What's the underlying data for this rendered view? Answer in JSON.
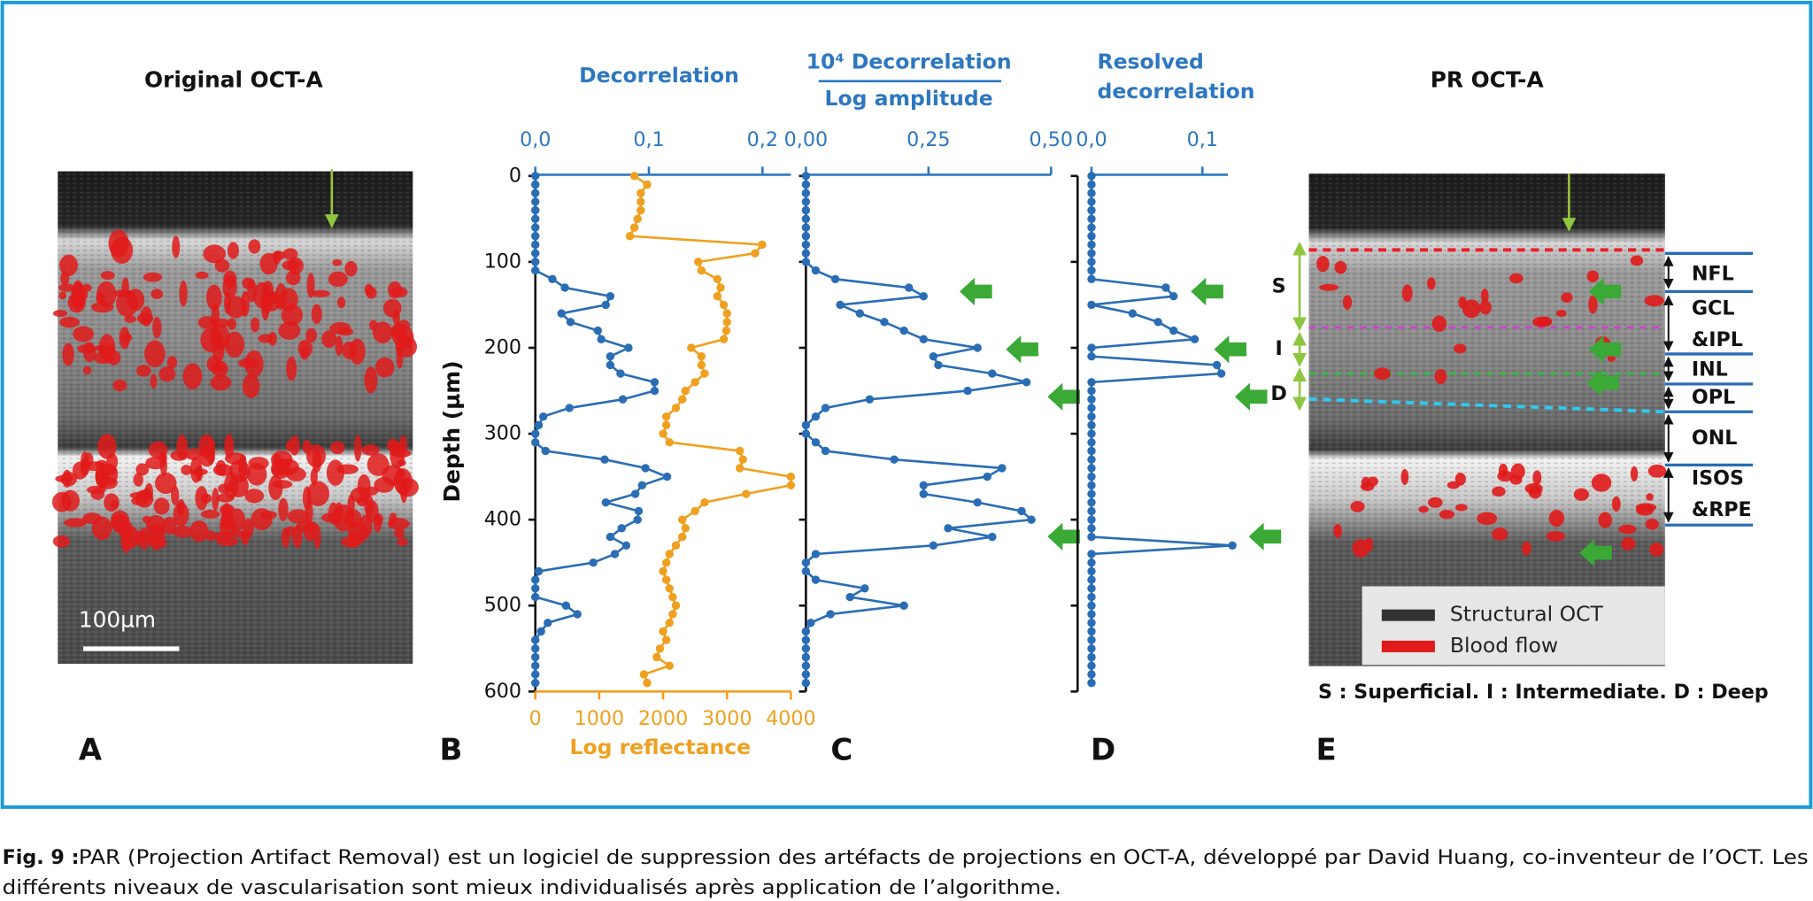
{
  "panels": {
    "a_title": "Original OCT-A",
    "scale_bar": "100µm",
    "e_title": "PR OCT-A",
    "c_title_top": "10⁴ Decorrelation",
    "c_title_bottom": "Log amplitude",
    "d_title_lines": [
      "Resolved",
      "decorrelation"
    ],
    "letters": [
      "A",
      "B",
      "C",
      "D",
      "E"
    ],
    "layers": [
      "NFL",
      "GCL",
      "&IPL",
      "INL",
      "OPL",
      "ONL",
      "ISOS",
      "&RPE"
    ],
    "zones": [
      "S",
      "I",
      "D"
    ],
    "legend": [
      "Structural OCT",
      "Blood flow"
    ],
    "zone_note": "S : Superficial. I : Intermediate. D : Deep"
  },
  "chart_data": [
    {
      "type": "line",
      "xlabel": "Decorrelation",
      "ylabel": "Depth (µm)",
      "xlim": [
        0,
        0.225
      ],
      "xticks": [
        {
          "value": 0,
          "label": "0,0"
        },
        {
          "value": 0.1,
          "label": "0,1"
        },
        {
          "value": 0.2,
          "label": "0,2"
        }
      ],
      "x2label": "Log reflectance",
      "x2lim": [
        0,
        4000
      ],
      "x2ticks": [
        0,
        1000,
        2000,
        3000,
        4000
      ],
      "ylim": [
        0,
        600
      ],
      "yticks": [
        0,
        100,
        200,
        300,
        400,
        500,
        600
      ],
      "depth": [
        0,
        10,
        20,
        30,
        40,
        50,
        60,
        70,
        80,
        90,
        100,
        110,
        120,
        130,
        140,
        150,
        160,
        170,
        180,
        190,
        200,
        210,
        220,
        230,
        240,
        250,
        260,
        270,
        280,
        290,
        300,
        310,
        320,
        330,
        340,
        350,
        360,
        370,
        380,
        390,
        400,
        410,
        420,
        430,
        440,
        450,
        460,
        470,
        480,
        490,
        500,
        510,
        520,
        530,
        540,
        550,
        560,
        570,
        580,
        590
      ],
      "series": [
        {
          "color": "#2a6db5",
          "values": [
            0,
            0,
            0,
            0,
            0,
            0,
            0,
            0,
            0,
            0,
            0,
            0,
            0.015,
            0.026,
            0.066,
            0.062,
            0.023,
            0.031,
            0.055,
            0.058,
            0.082,
            0.066,
            0.066,
            0.075,
            0.105,
            0.105,
            0.077,
            0.03,
            0.007,
            0.003,
            0,
            0,
            0.009,
            0.061,
            0.097,
            0.116,
            0.094,
            0.088,
            0.062,
            0.091,
            0.09,
            0.076,
            0.066,
            0.08,
            0.07,
            0.051,
            0.003,
            0,
            0,
            0,
            0.027,
            0.037,
            0.011,
            0.005,
            0,
            0,
            0,
            0,
            0,
            0
          ]
        },
        {
          "color": "#f0a020",
          "axis": "x2",
          "values": [
            1550,
            1750,
            1650,
            1650,
            1650,
            1600,
            1550,
            1480,
            3550,
            3440,
            2550,
            2600,
            2850,
            2900,
            2850,
            2950,
            3000,
            3000,
            2990,
            2950,
            2440,
            2600,
            2600,
            2650,
            2500,
            2350,
            2300,
            2200,
            2050,
            2050,
            2000,
            2100,
            3200,
            3250,
            3200,
            4000,
            4000,
            3300,
            2650,
            2500,
            2300,
            2350,
            2300,
            2200,
            2100,
            2050,
            2000,
            2050,
            2100,
            2150,
            2200,
            2150,
            2100,
            2000,
            2050,
            1950,
            1900,
            2100,
            1700,
            1750
          ]
        }
      ]
    },
    {
      "type": "line",
      "xlim": [
        0,
        0.5
      ],
      "xticks": [
        {
          "value": 0,
          "label": "0,00"
        },
        {
          "value": 0.25,
          "label": "0,25"
        },
        {
          "value": 0.5,
          "label": "0,50"
        }
      ],
      "series": [
        {
          "color": "#2a6db5",
          "values": [
            0,
            0,
            0,
            0,
            0,
            0,
            0,
            0,
            0,
            0,
            0,
            0.02,
            0.06,
            0.21,
            0.24,
            0.07,
            0.11,
            0.16,
            0.2,
            0.24,
            0.35,
            0.26,
            0.27,
            0.38,
            0.45,
            0.33,
            0.13,
            0.04,
            0.02,
            0,
            0,
            0.02,
            0.04,
            0.18,
            0.4,
            0.37,
            0.24,
            0.24,
            0.35,
            0.44,
            0.46,
            0.29,
            0.38,
            0.26,
            0.02,
            0,
            0,
            0.02,
            0.12,
            0.09,
            0.2,
            0.05,
            0.01,
            0,
            0,
            0,
            0,
            0,
            0,
            0
          ]
        }
      ]
    },
    {
      "type": "line",
      "xlim": [
        0,
        0.123
      ],
      "xticks": [
        {
          "value": 0,
          "label": "0,0"
        },
        {
          "value": 0.1,
          "label": "0,1"
        }
      ],
      "series": [
        {
          "color": "#2a6db5",
          "values": [
            0,
            0,
            0,
            0,
            0,
            0,
            0,
            0,
            0,
            0,
            0,
            0,
            0,
            0.067,
            0.074,
            0,
            0.037,
            0.06,
            0.074,
            0.093,
            0,
            0,
            0.113,
            0.117,
            0,
            0,
            0,
            0,
            0,
            0,
            0,
            0,
            0,
            0,
            0,
            0,
            0,
            0,
            0,
            0,
            0,
            0,
            0,
            0.127,
            0,
            0,
            0,
            0,
            0,
            0,
            0,
            0,
            0,
            0,
            0,
            0,
            0,
            0,
            0,
            0
          ]
        }
      ]
    }
  ],
  "caption": {
    "label": "Fig. 9 :",
    "lines": [
      "PAR (Projection Artifact Removal) est un logiciel de suppression des artéfacts de projections en OCT-A, développé par David Huang, co-inventeur de l’OCT. Les",
      "différents niveaux de vascularisation sont mieux individualisés après application de l’algorithme."
    ]
  }
}
